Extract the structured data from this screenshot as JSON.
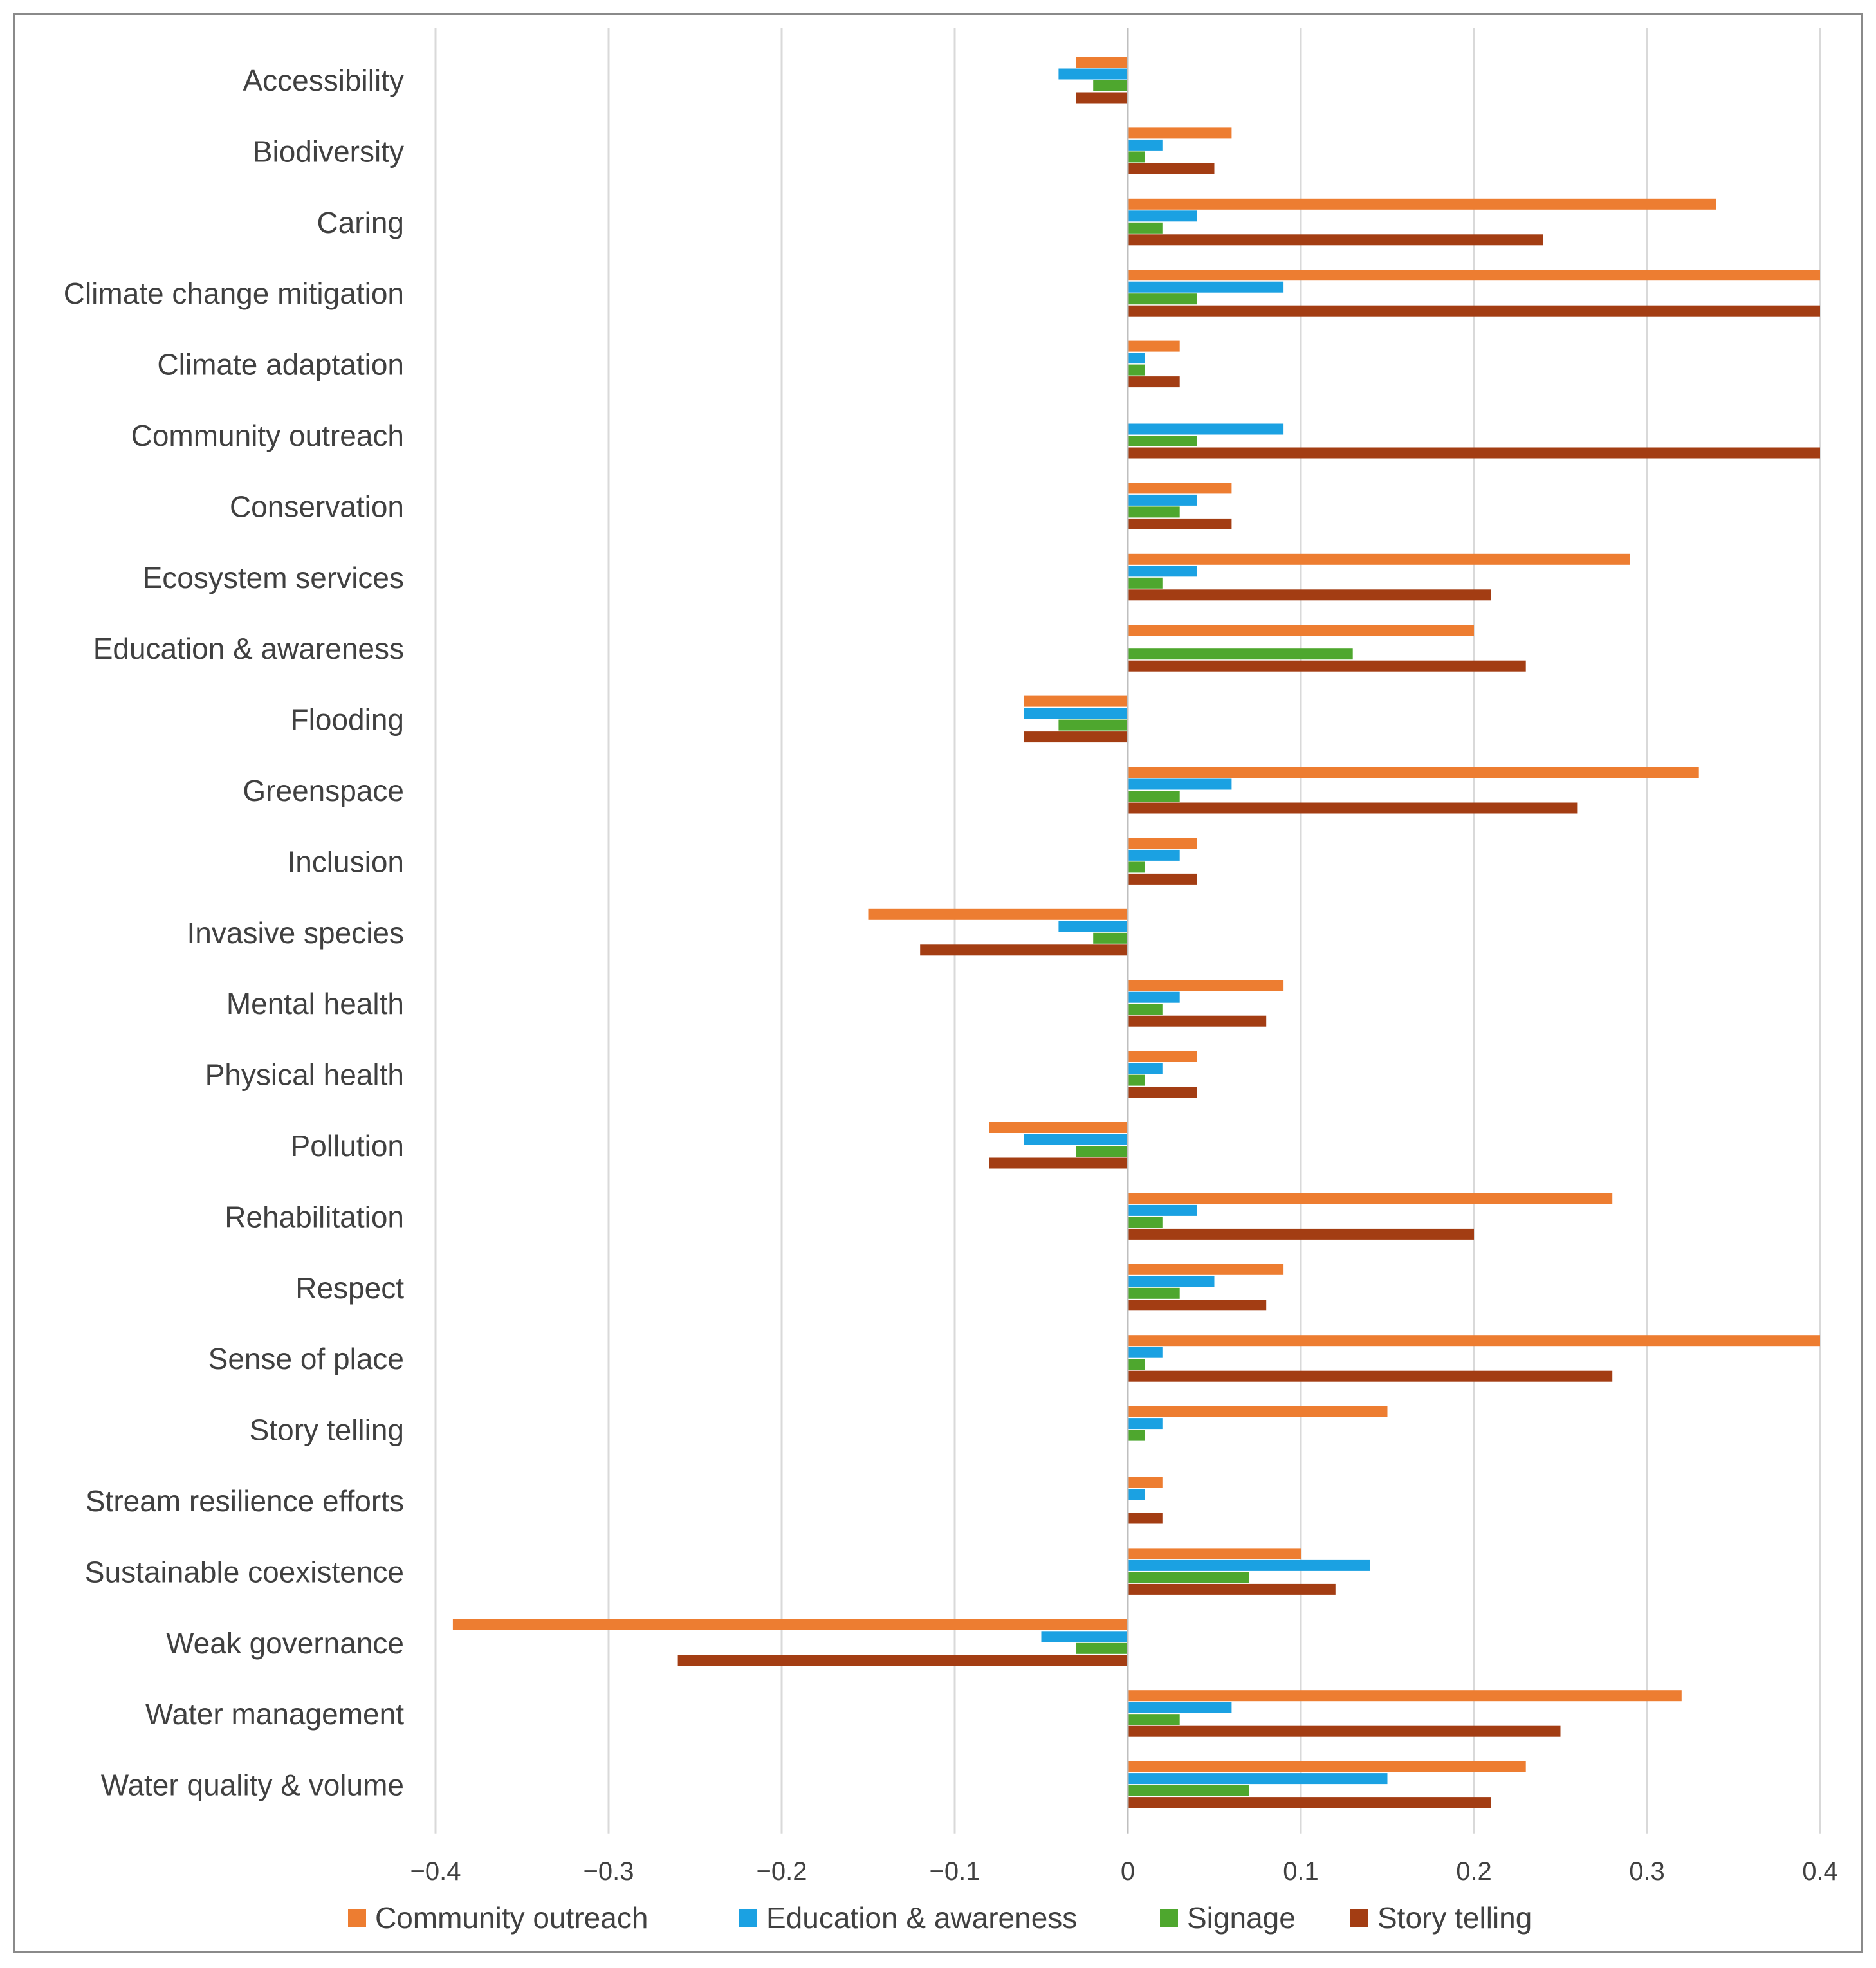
{
  "chart_data": {
    "type": "bar",
    "orientation": "horizontal",
    "title": "",
    "xlabel": "",
    "ylabel": "",
    "xlim": [
      -0.4,
      0.4
    ],
    "xticks": [
      -0.4,
      -0.3,
      -0.2,
      -0.1,
      0,
      0.1,
      0.2,
      0.3,
      0.4
    ],
    "xtick_labels": [
      "−0.4",
      "−0.3",
      "−0.2",
      "−0.1",
      "0",
      "0.1",
      "0.2",
      "0.3",
      "0.4"
    ],
    "grid": "vertical",
    "legend_position": "bottom",
    "categories": [
      "Accessibility",
      "Biodiversity",
      "Caring",
      "Climate change mitigation",
      "Climate adaptation",
      "Community outreach",
      "Conservation",
      "Ecosystem services",
      "Education & awareness",
      "Flooding",
      "Greenspace",
      "Inclusion",
      "Invasive species",
      "Mental health",
      "Physical health",
      "Pollution",
      "Rehabilitation",
      "Respect",
      "Sense of place",
      "Story telling",
      "Stream resilience efforts",
      "Sustainable coexistence",
      "Weak governance",
      "Water management",
      "Water quality & volume"
    ],
    "series": [
      {
        "name": "Community outreach",
        "color": "#ED7D31",
        "values": [
          -0.03,
          0.06,
          0.34,
          0.4,
          0.03,
          0,
          0.06,
          0.29,
          0.2,
          -0.06,
          0.33,
          0.04,
          -0.15,
          0.09,
          0.04,
          -0.08,
          0.28,
          0.09,
          0.4,
          0.15,
          0.02,
          0.1,
          -0.39,
          0.32,
          0.23
        ]
      },
      {
        "name": "Education & awareness",
        "color": "#1BA1E2",
        "values": [
          -0.04,
          0.02,
          0.04,
          0.09,
          0.01,
          0.09,
          0.04,
          0.04,
          0,
          -0.06,
          0.06,
          0.03,
          -0.04,
          0.03,
          0.02,
          -0.06,
          0.04,
          0.05,
          0.02,
          0.02,
          0.01,
          0.14,
          -0.05,
          0.06,
          0.15
        ]
      },
      {
        "name": "Signage",
        "color": "#4EA72E",
        "values": [
          -0.02,
          0.01,
          0.02,
          0.04,
          0.01,
          0.04,
          0.03,
          0.02,
          0.13,
          -0.04,
          0.03,
          0.01,
          -0.02,
          0.02,
          0.01,
          -0.03,
          0.02,
          0.03,
          0.01,
          0.01,
          0,
          0.07,
          -0.03,
          0.03,
          0.07
        ]
      },
      {
        "name": "Story telling",
        "color": "#A33D13",
        "values": [
          -0.03,
          0.05,
          0.24,
          0.4,
          0.03,
          0.4,
          0.06,
          0.21,
          0.23,
          -0.06,
          0.26,
          0.04,
          -0.12,
          0.08,
          0.04,
          -0.08,
          0.2,
          0.08,
          0.28,
          0,
          0.02,
          0.12,
          -0.26,
          0.25,
          0.21
        ]
      }
    ]
  }
}
